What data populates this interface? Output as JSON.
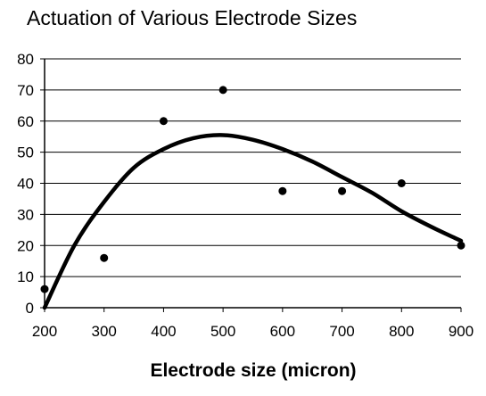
{
  "chart_data": {
    "type": "scatter",
    "title": "Actuation of Various Electrode Sizes",
    "xlabel": "Electrode size (micron)",
    "ylabel": "",
    "xlim": [
      200,
      900
    ],
    "ylim": [
      0,
      80
    ],
    "xticks": [
      200,
      300,
      400,
      500,
      600,
      700,
      800,
      900
    ],
    "yticks": [
      0,
      10,
      20,
      30,
      40,
      50,
      60,
      70,
      80
    ],
    "grid": "horizontal",
    "legend": "none",
    "points": [
      {
        "x": 200,
        "y": 6
      },
      {
        "x": 300,
        "y": 16
      },
      {
        "x": 400,
        "y": 60
      },
      {
        "x": 500,
        "y": 70
      },
      {
        "x": 600,
        "y": 37.5
      },
      {
        "x": 700,
        "y": 37.5
      },
      {
        "x": 800,
        "y": 40
      },
      {
        "x": 900,
        "y": 20
      }
    ],
    "trendline": {
      "type": "polynomial fit",
      "x": [
        200,
        250,
        300,
        350,
        400,
        450,
        500,
        550,
        600,
        650,
        700,
        750,
        800,
        850,
        900
      ],
      "y": [
        0,
        20,
        34,
        45,
        51,
        54.5,
        55.5,
        54,
        51,
        47,
        42,
        37,
        31,
        26,
        21.5
      ]
    },
    "colors": {
      "marker": "#000000",
      "trendline": "#000000",
      "grid": "#000000"
    }
  }
}
